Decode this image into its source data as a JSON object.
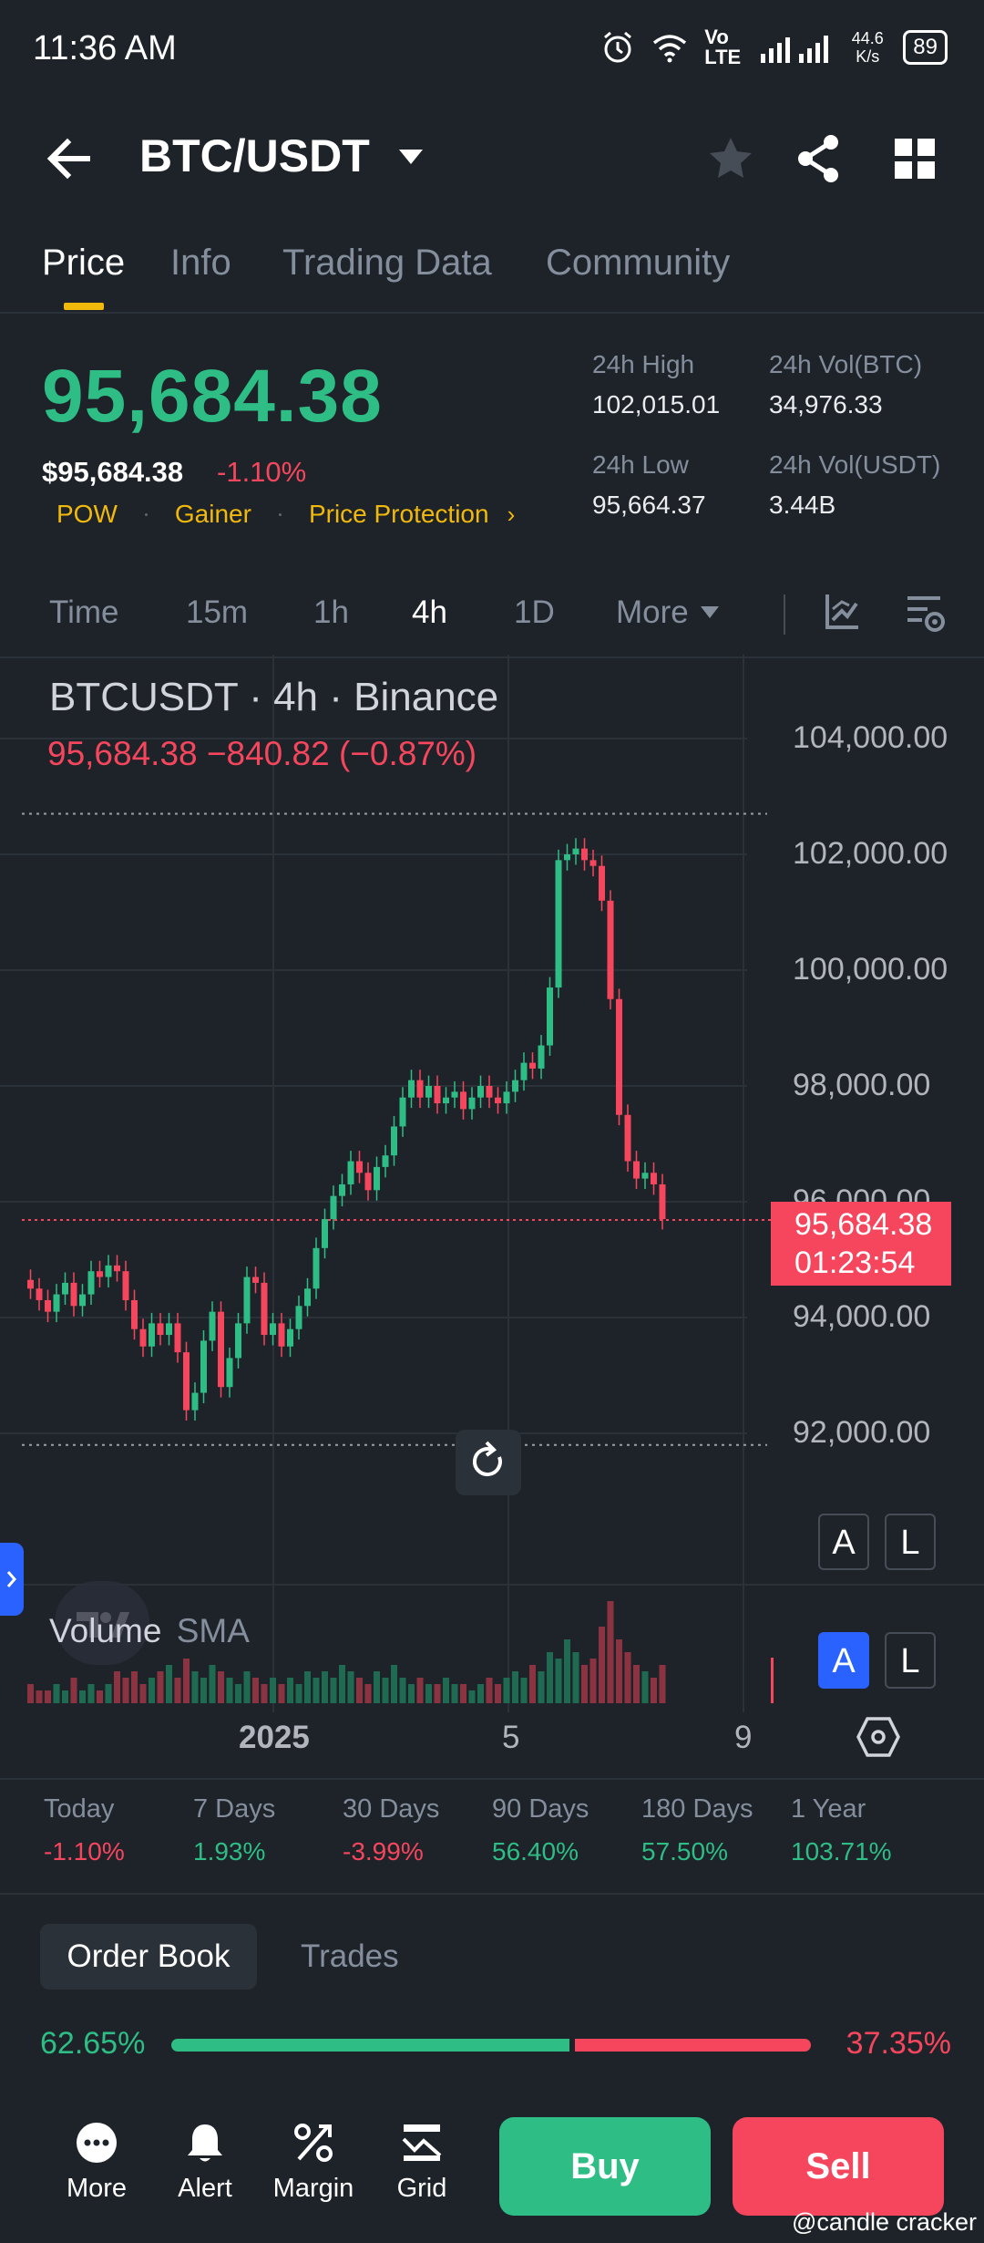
{
  "status_bar": {
    "time": "11:36 AM",
    "network": "Vo LTE",
    "speed": "44.6 K/s",
    "battery": "89"
  },
  "header": {
    "title": "BTC/USDT"
  },
  "tabs": [
    {
      "label": "Price"
    },
    {
      "label": "Info"
    },
    {
      "label": "Trading Data"
    },
    {
      "label": "Community"
    }
  ],
  "price": {
    "last": "95,684.38",
    "fiat": "$95,684.38",
    "change": "-1.10%",
    "tags": [
      "POW",
      "Gainer",
      "Price Protection"
    ]
  },
  "stats": {
    "high_label": "24h High",
    "high": "102,015.01",
    "low_label": "24h Low",
    "low": "95,664.37",
    "vol_btc_label": "24h Vol(BTC)",
    "vol_btc": "34,976.33",
    "vol_usdt_label": "24h Vol(USDT)",
    "vol_usdt": "3.44B"
  },
  "intervals": [
    "Time",
    "15m",
    "1h",
    "4h",
    "1D",
    "More"
  ],
  "chart": {
    "title": "BTCUSDT · 4h · Binance",
    "quote": "95,684.38  −840.82 (−0.87%)",
    "axis_labels": [
      "104,000.00",
      "102,000.00",
      "100,000.00",
      "98,000.00",
      "96,000.00",
      "94,000.00",
      "92,000.00"
    ],
    "current_price": "95,684.38",
    "countdown": "01:23:54",
    "volume_label": "Volume",
    "sma_label": "SMA",
    "date_labels": [
      "2025",
      "5",
      "9"
    ],
    "autoscale": "A",
    "log": "L"
  },
  "chart_data": {
    "type": "candlestick",
    "title": "BTCUSDT · 4h · Binance",
    "ylim": [
      91000,
      105000
    ],
    "y_ticks": [
      92000,
      94000,
      96000,
      98000,
      100000,
      102000,
      104000
    ],
    "x_tick_labels": [
      "2025",
      "5",
      "9"
    ],
    "current_price": 95684.38,
    "close_series": [
      94500,
      94300,
      94100,
      94400,
      94600,
      94200,
      94400,
      94800,
      94700,
      94900,
      94800,
      94300,
      93800,
      93500,
      93900,
      93700,
      93900,
      93400,
      92400,
      92700,
      93600,
      94100,
      92800,
      93300,
      93900,
      94700,
      94600,
      93700,
      93900,
      93500,
      93800,
      94200,
      94500,
      95200,
      95700,
      96100,
      96300,
      96700,
      96500,
      96200,
      96600,
      96800,
      97300,
      97800,
      98100,
      97800,
      98000,
      97700,
      97800,
      97900,
      97600,
      97800,
      98000,
      97800,
      97700,
      97900,
      98100,
      98400,
      98300,
      98700,
      99700,
      101900,
      102000,
      102100,
      101900,
      101800,
      101200,
      99500,
      97500,
      96700,
      96400,
      96500,
      96300,
      95700
    ],
    "volume_series": [
      3,
      2,
      2,
      3,
      2,
      4,
      2,
      3,
      2,
      3,
      5,
      4,
      5,
      3,
      4,
      5,
      6,
      4,
      7,
      5,
      4,
      6,
      5,
      4,
      3,
      5,
      4,
      3,
      4,
      3,
      4,
      3,
      5,
      4,
      5,
      4,
      6,
      5,
      4,
      3,
      5,
      4,
      6,
      4,
      3,
      4,
      3,
      3,
      4,
      3,
      3,
      2,
      3,
      4,
      3,
      4,
      5,
      4,
      6,
      5,
      8,
      7,
      10,
      8,
      6,
      7,
      12,
      16,
      10,
      8,
      6,
      5,
      4,
      6
    ]
  },
  "performance": [
    {
      "label": "Today",
      "value": "-1.10%"
    },
    {
      "label": "7 Days",
      "value": "1.93%"
    },
    {
      "label": "30 Days",
      "value": "-3.99%"
    },
    {
      "label": "90 Days",
      "value": "56.40%"
    },
    {
      "label": "180 Days",
      "value": "57.50%"
    },
    {
      "label": "1 Year",
      "value": "103.71%"
    }
  ],
  "orderbook": {
    "tab_orderbook": "Order Book",
    "tab_trades": "Trades",
    "buy_ratio": "62.65%",
    "sell_ratio": "37.35%",
    "buy_fraction": 0.6265
  },
  "bottom": {
    "more": "More",
    "alert": "Alert",
    "margin": "Margin",
    "grid": "Grid",
    "buy": "Buy",
    "sell": "Sell"
  },
  "watermark": "@candle cracker",
  "colors": {
    "green": "#2ebd85",
    "red": "#f6465d",
    "yellow": "#f0b90b",
    "background": "#1e2329"
  }
}
